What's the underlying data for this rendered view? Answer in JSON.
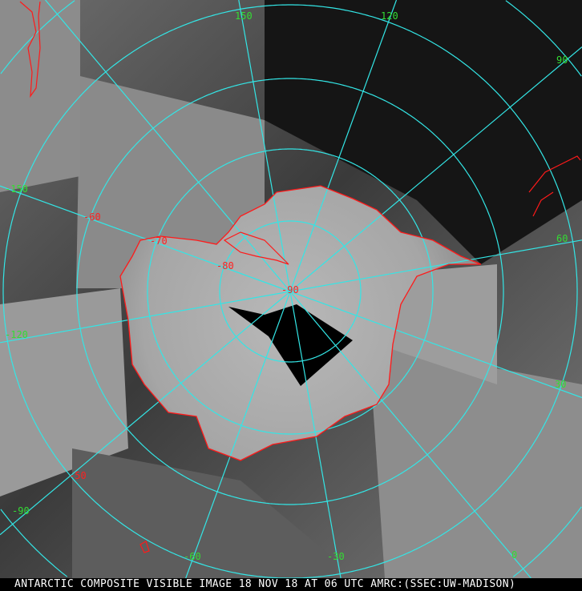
{
  "caption": "ANTARCTIC COMPOSITE VISIBLE IMAGE 18 NOV 18 AT 06 UTC AMRC:(SSEC:UW-MADISON)",
  "colors": {
    "graticule": "#33e6e6",
    "coastline": "#ff1a1a",
    "longitude_labels": "#33dd33",
    "latitude_labels": "#ff2020",
    "caption_text": "#ffffff",
    "caption_bg": "#000000"
  },
  "latitude_labels": [
    "-50",
    "-60",
    "-70",
    "-80",
    "-90"
  ],
  "longitude_labels": [
    "150",
    "120",
    "90",
    "60",
    "30",
    "0",
    "-30",
    "-60",
    "-90",
    "-120",
    "-150"
  ]
}
